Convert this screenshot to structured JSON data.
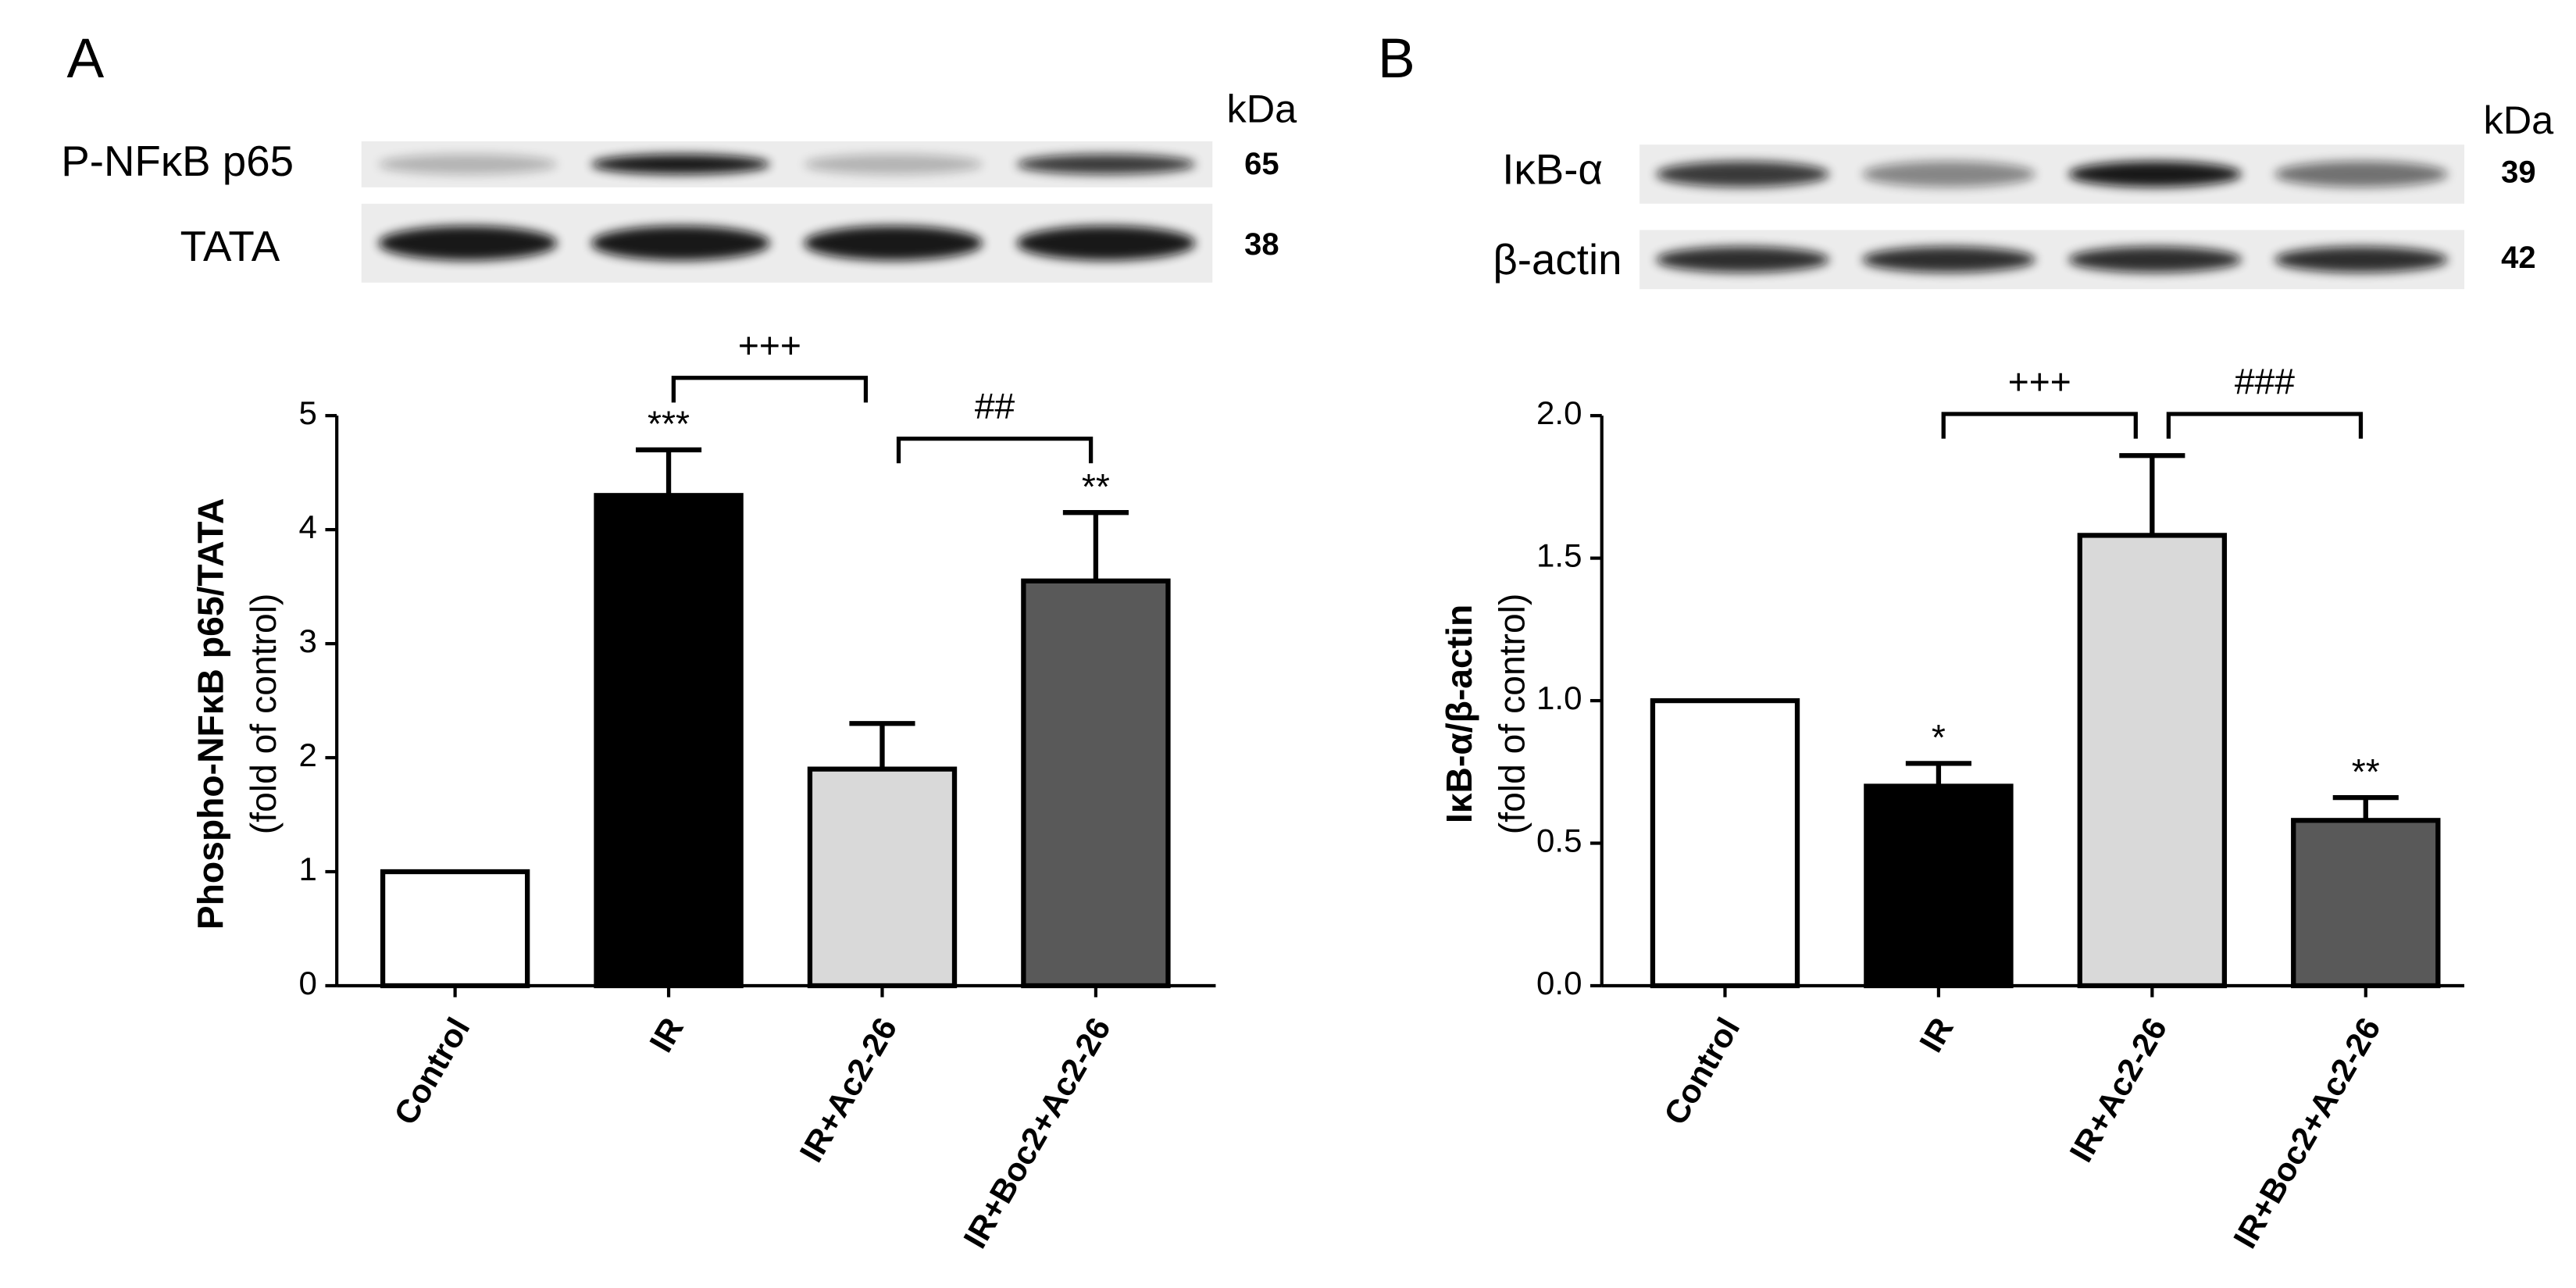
{
  "chart_data": [
    {
      "type": "bar",
      "panel": "A",
      "blots": [
        {
          "label": "P-NFκB p65",
          "kda": "65"
        },
        {
          "label": "TATA",
          "kda": "38"
        }
      ],
      "kda_header": "kDa",
      "y_label": "Phospho-NFκB p65/TATA",
      "y_label_sub": "(fold of control)",
      "categories": [
        "Control",
        "IR",
        "IR+Ac2-26",
        "IR+Boc2+Ac2-26"
      ],
      "values": [
        1,
        4.3,
        1.9,
        3.55
      ],
      "errors": [
        0,
        0.4,
        0.4,
        0.6
      ],
      "colors": [
        "#ffffff",
        "#000000",
        "#d9d9d9",
        "#595959"
      ],
      "ylim": [
        0,
        5
      ],
      "yticks": [
        0,
        1,
        2,
        3,
        4,
        5
      ],
      "annotations": [
        {
          "text": "***",
          "category": "IR"
        },
        {
          "text": "**",
          "category": "IR+Boc2+Ac2-26"
        }
      ],
      "brackets": [
        {
          "text": "+++",
          "from": "IR",
          "to": "IR+Ac2-26"
        },
        {
          "text": "##",
          "from": "IR+Ac2-26",
          "to": "IR+Boc2+Ac2-26"
        }
      ]
    },
    {
      "type": "bar",
      "panel": "B",
      "blots": [
        {
          "label": "IκB-α",
          "kda": "39"
        },
        {
          "label": "β-actin",
          "kda": "42"
        }
      ],
      "kda_header": "kDa",
      "y_label": "IκB-α/β-actin",
      "y_label_sub": "(fold of control)",
      "categories": [
        "Control",
        "IR",
        "IR+Ac2-26",
        "IR+Boc2+Ac2-26"
      ],
      "values": [
        1,
        0.7,
        1.58,
        0.58
      ],
      "errors": [
        0,
        0.08,
        0.28,
        0.08
      ],
      "colors": [
        "#ffffff",
        "#000000",
        "#d9d9d9",
        "#595959"
      ],
      "ylim": [
        0,
        2
      ],
      "yticks": [
        {
          "value": 0,
          "label": "0.0"
        },
        0.5,
        {
          "value": 1,
          "label": "1.0"
        },
        1.5,
        {
          "value": 2,
          "label": "2.0"
        }
      ],
      "annotations": [
        {
          "text": "*",
          "category": "IR"
        },
        {
          "text": "**",
          "category": "IR+Boc2+Ac2-26"
        }
      ],
      "brackets": [
        {
          "text": "+++",
          "from": "IR",
          "to": "IR+Ac2-26"
        },
        {
          "text": "###",
          "from": "IR+Ac2-26",
          "to": "IR+Boc2+Ac2-26"
        }
      ]
    }
  ]
}
